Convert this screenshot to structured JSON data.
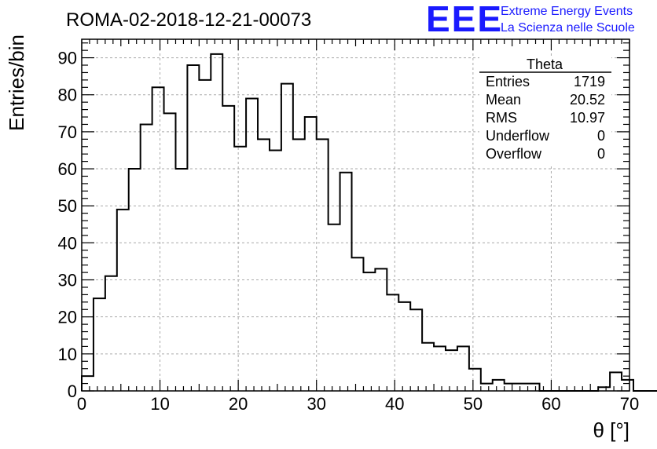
{
  "title": "ROMA-02-2018-12-21-00073",
  "logo": {
    "mark": "EEE",
    "line1": "Extreme Energy Events",
    "line2": "La Scienza nelle Scuole",
    "color": "#1a1aff"
  },
  "stats": {
    "name": "Theta",
    "rows": [
      {
        "label": "Entries",
        "value": "1719"
      },
      {
        "label": "Mean",
        "value": "20.52"
      },
      {
        "label": "RMS",
        "value": "10.97"
      },
      {
        "label": "Underflow",
        "value": "0"
      },
      {
        "label": "Overflow",
        "value": "0"
      }
    ]
  },
  "chart_data": {
    "type": "bar",
    "histogram": true,
    "title": "ROMA-02-2018-12-21-00073",
    "xlabel": "θ [°]",
    "ylabel": "Entries/bin",
    "xlim": [
      0,
      70
    ],
    "ylim": [
      0,
      95
    ],
    "xticks": [
      0,
      10,
      20,
      30,
      40,
      50,
      60,
      70
    ],
    "yticks": [
      0,
      10,
      20,
      30,
      40,
      50,
      60,
      70,
      80,
      90
    ],
    "grid": true,
    "bin_width": 1.5,
    "bins_start": 0,
    "values": [
      4,
      25,
      31,
      49,
      60,
      72,
      82,
      75,
      60,
      88,
      84,
      91,
      77,
      66,
      79,
      68,
      65,
      83,
      68,
      74,
      68,
      45,
      59,
      36,
      32,
      33,
      26,
      24,
      22,
      13,
      12,
      11,
      12,
      6,
      2,
      3,
      2,
      2,
      2,
      0,
      0,
      0,
      0,
      0,
      1,
      5,
      3,
      0,
      0,
      0
    ]
  }
}
